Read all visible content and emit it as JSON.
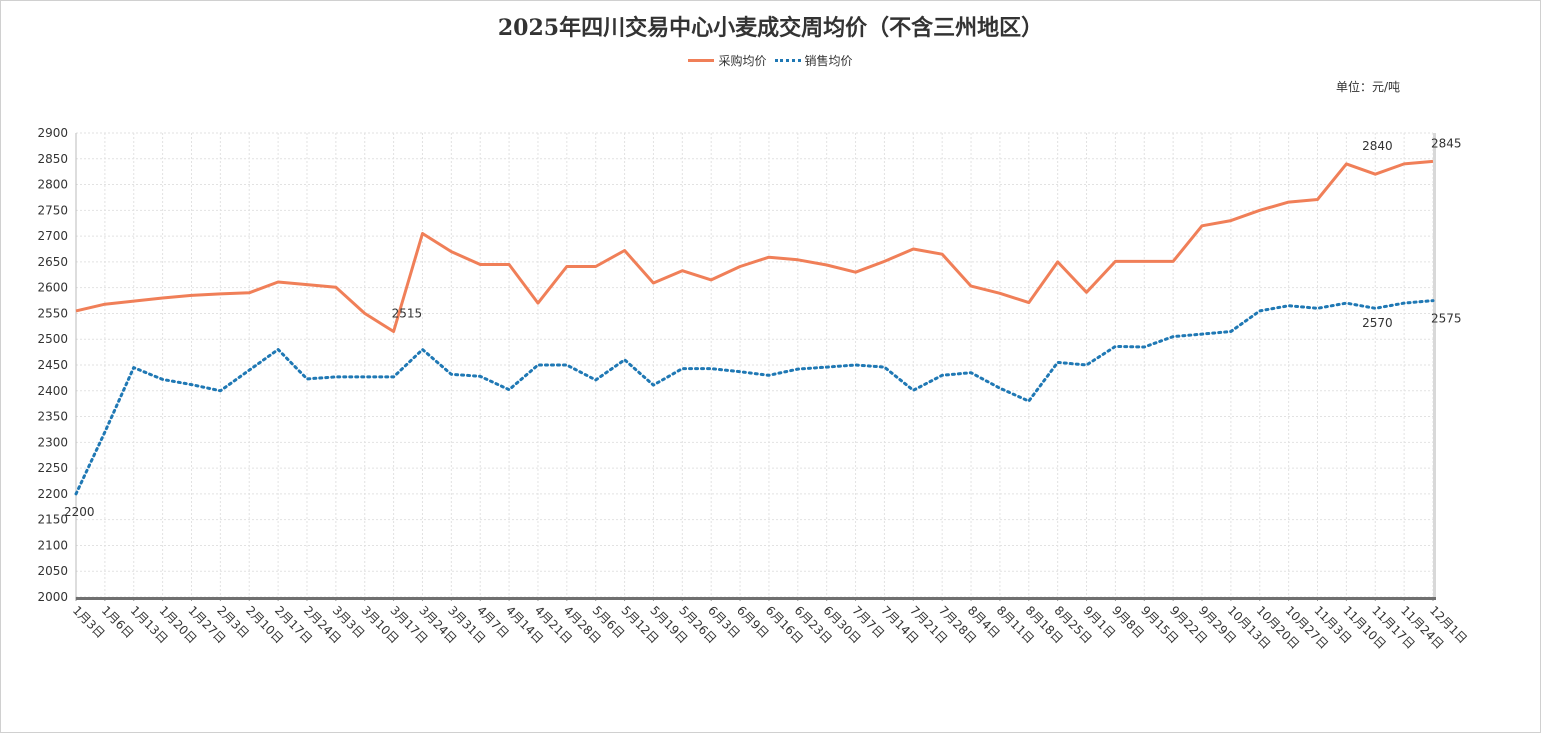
{
  "chart_data": {
    "type": "line",
    "title": "2025年四川交易中心小麦成交周均价（不含三州地区）",
    "unit_label": "单位：元/吨",
    "xlabel": "",
    "ylabel": "",
    "ylim": [
      2000,
      2900
    ],
    "yticks": [
      2000,
      2050,
      2100,
      2150,
      2200,
      2250,
      2300,
      2350,
      2400,
      2450,
      2500,
      2550,
      2600,
      2650,
      2700,
      2750,
      2800,
      2850,
      2900
    ],
    "grid": true,
    "legend_position": "top",
    "categories": [
      "1月3日",
      "1月6日",
      "1月13日",
      "1月20日",
      "1月27日",
      "2月3日",
      "2月10日",
      "2月17日",
      "2月24日",
      "3月3日",
      "3月10日",
      "3月17日",
      "3月24日",
      "3月31日",
      "4月7日",
      "4月14日",
      "4月21日",
      "4月28日",
      "5月6日",
      "5月12日",
      "5月19日",
      "5月26日",
      "6月3日",
      "6月9日",
      "6月16日",
      "6月23日",
      "6月30日",
      "7月7日",
      "7月14日",
      "7月21日",
      "7月28日",
      "8月4日",
      "8月11日",
      "8月18日",
      "8月25日",
      "9月1日",
      "9月8日",
      "9月15日",
      "9月22日",
      "9月29日",
      "10月13日",
      "10月20日",
      "10月27日",
      "11月3日",
      "11月10日",
      "11月17日",
      "11月24日",
      "12月1日"
    ],
    "series": [
      {
        "name": "采购均价",
        "color": "#f07f58",
        "style": "solid",
        "values": [
          2555,
          2568,
          2574,
          2580,
          2585,
          2588,
          2590,
          2611,
          2606,
          2601,
          2550,
          2515,
          2705,
          2670,
          2645,
          2645,
          2570,
          2641,
          2641,
          2672,
          2609,
          2633,
          2615,
          2641,
          2659,
          2654,
          2644,
          2630,
          2651,
          2675,
          2665,
          2603,
          2589,
          2571,
          2650,
          2591,
          2651,
          2651,
          2651,
          2720,
          2730,
          2750,
          2766,
          2771,
          2840,
          2820,
          2840,
          2845
        ],
        "data_labels": {
          "11": "2515",
          "46": "2840",
          "47": "2845"
        }
      },
      {
        "name": "销售均价",
        "color": "#1f78b4",
        "style": "dotted",
        "values": [
          2200,
          2320,
          2445,
          2422,
          2412,
          2400,
          2440,
          2480,
          2423,
          2427,
          2427,
          2427,
          2480,
          2432,
          2428,
          2402,
          2450,
          2450,
          2421,
          2460,
          2411,
          2443,
          2443,
          2437,
          2430,
          2442,
          2446,
          2450,
          2446,
          2401,
          2430,
          2435,
          2405,
          2380,
          2455,
          2450,
          2486,
          2485,
          2505,
          2510,
          2515,
          2555,
          2565,
          2560,
          2570,
          2560,
          2570,
          2575
        ],
        "data_labels": {
          "0": "2200",
          "46": "2570",
          "47": "2575"
        }
      }
    ]
  }
}
